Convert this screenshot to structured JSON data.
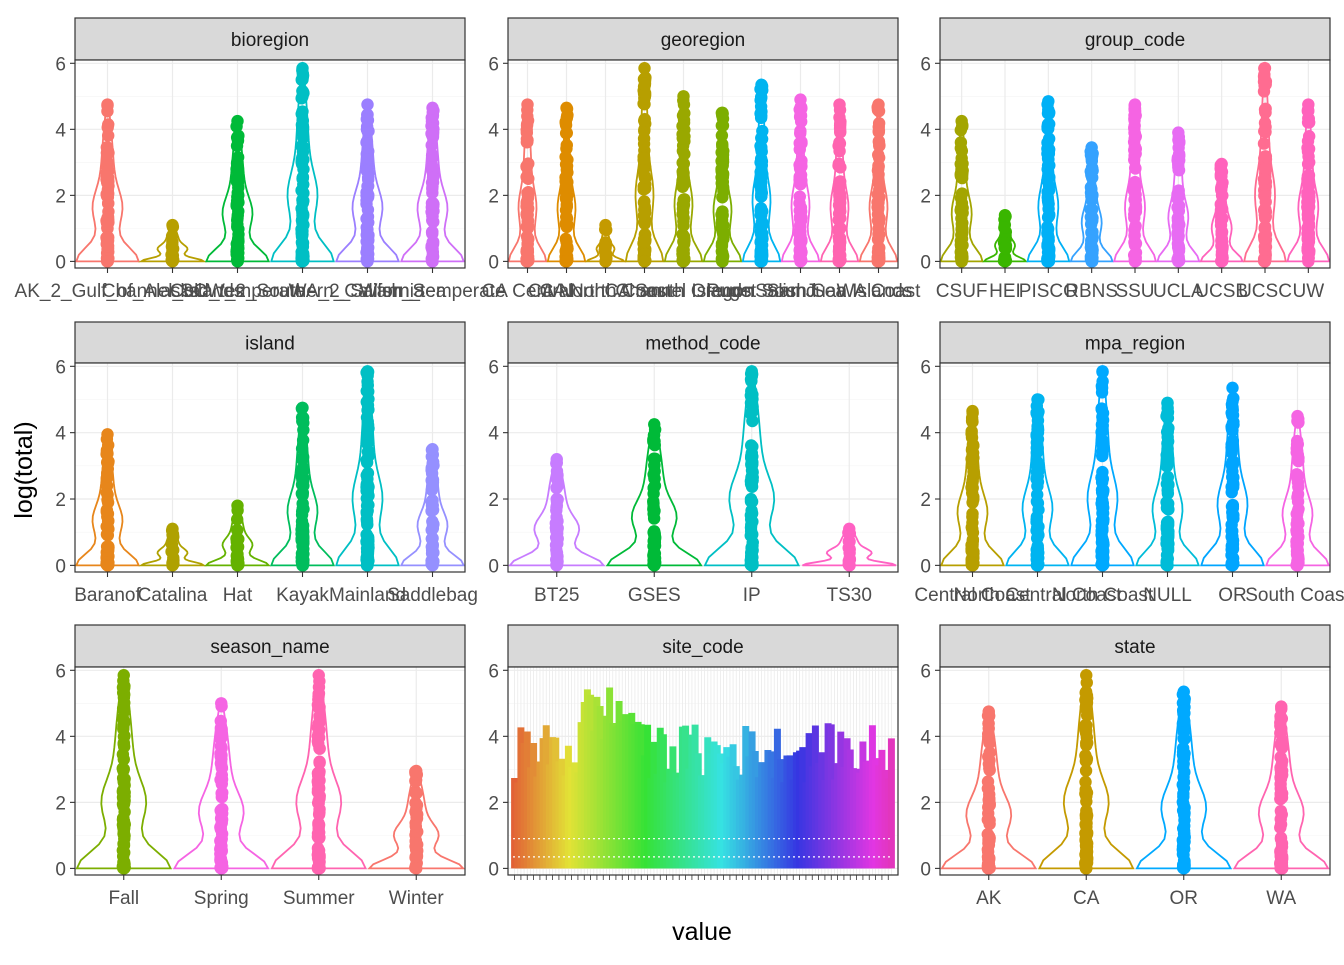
{
  "chart_data": {
    "type": "faceted_violin",
    "xlabel": "value",
    "ylabel": "log(total)",
    "yticks": [
      0,
      2,
      4,
      6
    ],
    "ylim": [
      -0.2,
      6.1
    ],
    "grid": true,
    "legend": "none",
    "panels": [
      {
        "title": "bioregion",
        "categories": [
          "AK_2_Gulf_of_Alaska",
          "Channel_Islands",
          "Cold_temperate",
          "SCW_2_Southern_California",
          "WA_2_Salish_Sea",
          "Warm_temperate"
        ],
        "max": [
          4.75,
          1.1,
          4.25,
          5.85,
          4.75,
          4.65
        ],
        "colors": [
          "#F8766D",
          "#B79F00",
          "#00BA38",
          "#00BFC4",
          "#9B7FFF",
          "#CF6FF7"
        ]
      },
      {
        "title": "georegion",
        "categories": [
          "CA Central",
          "CA North",
          "CA North Coast",
          "CA South",
          "Channel Islands",
          "Oregon",
          "Puget Sound",
          "Salish Sea",
          "San Juan Islands",
          "WA Coast"
        ],
        "max": [
          4.75,
          4.65,
          1.1,
          5.85,
          5.0,
          4.5,
          5.35,
          4.9,
          4.75,
          4.75
        ],
        "colors": [
          "#F8766D",
          "#DE8C00",
          "#C49A00",
          "#B79F00",
          "#99A800",
          "#7CAE00",
          "#00B4F0",
          "#F564E3",
          "#FF64B0",
          "#F8766D"
        ]
      },
      {
        "title": "group_code",
        "categories": [
          "CSUF",
          "HEI",
          "PISCO",
          "RBNS",
          "SSU",
          "UCLA",
          "UCSB",
          "UCSC",
          "UW"
        ],
        "max": [
          4.25,
          1.4,
          4.85,
          3.45,
          4.75,
          3.9,
          2.95,
          5.85,
          4.75
        ],
        "colors": [
          "#A3A500",
          "#39B600",
          "#00B0F6",
          "#35A2FF",
          "#F564E3",
          "#E76BF3",
          "#FF62BC",
          "#FF6C91",
          "#FF62BC"
        ]
      },
      {
        "title": "island",
        "categories": [
          "Baranof",
          "Catalina",
          "Hat",
          "Kayak",
          "Mainland",
          "Saddlebag"
        ],
        "max": [
          3.95,
          1.1,
          1.8,
          4.75,
          5.85,
          3.5
        ],
        "colors": [
          "#E7861B",
          "#AFA100",
          "#64B200",
          "#00BD5C",
          "#00BFC4",
          "#9590FF"
        ]
      },
      {
        "title": "method_code",
        "categories": [
          "BT25",
          "GSES",
          "IP",
          "TS30"
        ],
        "max": [
          3.2,
          4.25,
          5.85,
          1.1
        ],
        "colors": [
          "#C77CFF",
          "#00BA38",
          "#00BFC4",
          "#FF61C3"
        ]
      },
      {
        "title": "mpa_region",
        "categories": [
          "Central Coast",
          "North Central Coast",
          "North Coast",
          "NULL",
          "OR",
          "South Coast"
        ],
        "max": [
          4.65,
          5.0,
          5.85,
          4.9,
          5.35,
          4.5
        ],
        "colors": [
          "#B79F00",
          "#00B4F0",
          "#00A9FF",
          "#00BCD8",
          "#00A5FF",
          "#F564E3"
        ]
      },
      {
        "title": "season_name",
        "categories": [
          "Fall",
          "Spring",
          "Summer",
          "Winter"
        ],
        "max": [
          5.85,
          5.0,
          5.85,
          2.95
        ],
        "colors": [
          "#7CAE00",
          "#F564E3",
          "#FF64B0",
          "#F8766D"
        ]
      },
      {
        "title": "site_code",
        "categories": [],
        "max": [],
        "colors": []
      },
      {
        "title": "state",
        "categories": [
          "AK",
          "CA",
          "OR",
          "WA"
        ],
        "max": [
          4.75,
          5.85,
          5.35,
          4.9
        ],
        "colors": [
          "#F8766D",
          "#C49A00",
          "#00A9FF",
          "#FF64B0"
        ]
      }
    ]
  }
}
